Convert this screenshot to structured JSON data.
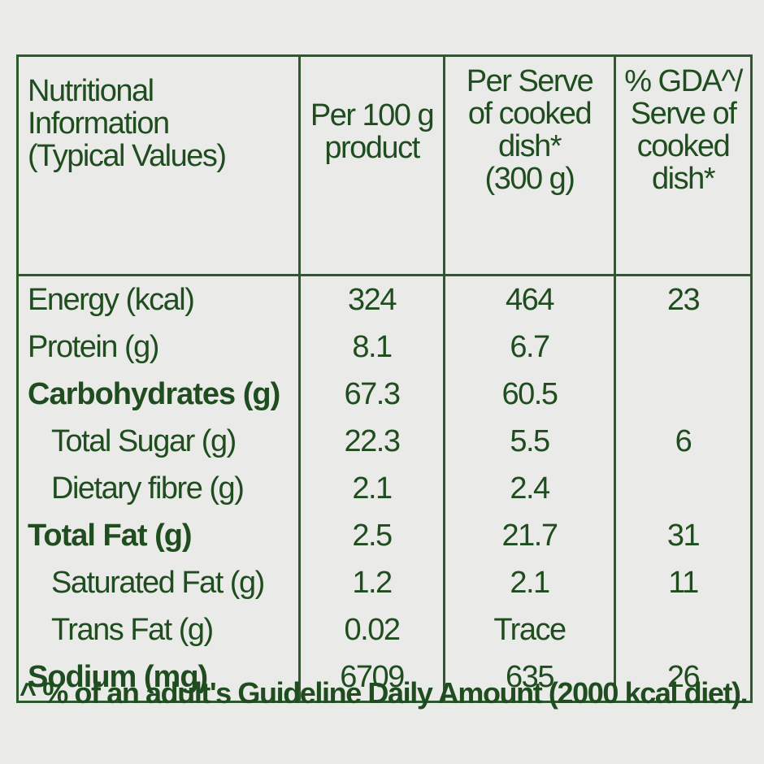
{
  "table": {
    "headers": [
      [
        "Nutritional",
        "Information",
        "(Typical Values)"
      ],
      [
        "Per 100 g",
        "product"
      ],
      [
        "Per Serve",
        "of cooked",
        "dish*",
        "(300 g)"
      ],
      [
        "% GDA^/",
        "Serve of",
        "cooked",
        "dish*"
      ]
    ],
    "rows": [
      {
        "label": "Energy (kcal)",
        "per100": "324",
        "perServe": "464",
        "gda": "23"
      },
      {
        "label": "Protein (g)",
        "per100": "8.1",
        "perServe": "6.7",
        "gda": ""
      },
      {
        "label": "Carbohydrates (g)",
        "per100": "67.3",
        "perServe": "60.5",
        "gda": ""
      },
      {
        "label": "Total Sugar (g)",
        "per100": "22.3",
        "perServe": "5.5",
        "gda": "6"
      },
      {
        "label": "Dietary fibre (g)",
        "per100": "2.1",
        "perServe": "2.4",
        "gda": ""
      },
      {
        "label": "Total Fat (g)",
        "per100": "2.5",
        "perServe": "21.7",
        "gda": "31"
      },
      {
        "label": "Saturated Fat (g)",
        "per100": "1.2",
        "perServe": "2.1",
        "gda": "11"
      },
      {
        "label": "Trans Fat (g)",
        "per100": "0.02",
        "perServe": "Trace",
        "gda": ""
      },
      {
        "label": "Sodium (mg)",
        "per100": "6709",
        "perServe": "635",
        "gda": "26"
      }
    ]
  },
  "footnote": "^ % of an adult's Guideline Daily Amount (2000 kcal diet).",
  "colors": {
    "text": "#1f4d1f",
    "border": "#2c5a2c",
    "background": "#ebebea"
  }
}
